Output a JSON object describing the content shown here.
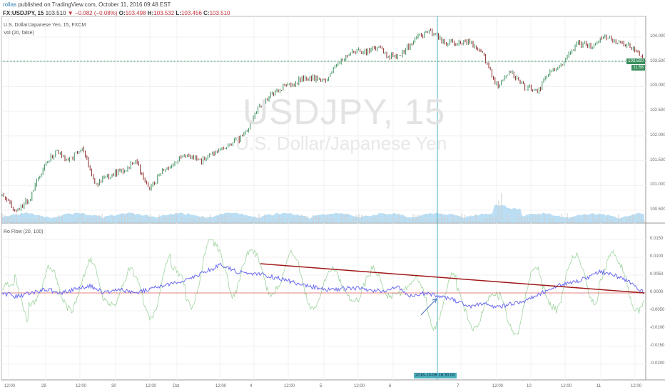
{
  "header": {
    "user": "rollas",
    "published": "published on TradingView.com, October 11, 2016 09:48 EST",
    "symbol": "FX:USDJPY, 15",
    "last": "103.510",
    "change": "−0.082 (−0.08%)",
    "o_label": "O:",
    "o": "103.498",
    "h_label": "H:",
    "h": "103.532",
    "l_label": "L:",
    "l": "103.456",
    "c_label": "C:",
    "c": "103.510"
  },
  "main_pane": {
    "title": "U.S. Dollar/Japanese Yen, 15, FXCM",
    "vol_label": "Vol (20, false)",
    "watermark_symbol": "USDJPY, 15",
    "watermark_name": "U.S. Dollar/Japanese Yen",
    "price_ticks": [
      "104.000",
      "103.500",
      "103.000",
      "102.500",
      "102.000",
      "101.500",
      "101.000",
      "100.500"
    ],
    "last_price_badge": "103.510",
    "countdown_badge": "11:58"
  },
  "indicator_pane": {
    "title": "Ro Flow (20, 100)",
    "ticks": [
      "0.0150",
      "0.0100",
      "0.0050",
      "0.0000",
      "-0.0050",
      "-0.0100",
      "-0.0150",
      "-0.0200"
    ]
  },
  "time_axis": {
    "labels": [
      "12:00",
      "29",
      "12:00",
      "30",
      "12:00",
      "Oct",
      "12:00",
      "4",
      "12:00",
      "5",
      "12:00",
      "6",
      "7",
      "12:00",
      "10",
      "12:00",
      "11",
      "12:00"
    ],
    "crosshair_label": "2016-10-06 16:30:00"
  },
  "colors": {
    "up": "#3a8f5d",
    "down": "#8b2a2a",
    "ro_flow": "#6b6bf0",
    "signal": "#9fd49f",
    "trendline": "#a01818",
    "zero": "#e06060",
    "volume": "#9fd0ee",
    "crosshair": "#4fb3bf"
  },
  "chart_data": {
    "type": "line",
    "price_path": [
      100.8,
      100.5,
      100.7,
      101.3,
      101.7,
      101.5,
      101.8,
      101.0,
      101.2,
      101.3,
      101.5,
      100.9,
      101.3,
      101.5,
      101.6,
      101.5,
      101.7,
      101.8,
      102.0,
      102.5,
      102.8,
      103.0,
      103.1,
      103.2,
      103.1,
      103.4,
      103.7,
      103.7,
      103.8,
      103.6,
      103.7,
      104.0,
      104.1,
      103.9,
      103.9,
      103.9,
      103.6,
      103.0,
      103.3,
      103.0,
      102.9,
      103.3,
      103.5,
      103.9,
      103.8,
      104.0,
      103.9,
      103.8,
      103.51
    ],
    "ro_flow": [
      0.0,
      -0.001,
      0.0,
      0.001,
      0.0,
      0.001,
      0.002,
      0.0,
      0.001,
      0.0,
      0.001,
      0.002,
      0.003,
      0.0045,
      0.006,
      0.008,
      0.006,
      0.0055,
      0.005,
      0.004,
      0.003,
      0.002,
      0.001,
      0.001,
      0.0015,
      0.001,
      0.0005,
      0.002,
      -0.001,
      0.0,
      -0.001,
      -0.002,
      -0.004,
      -0.003,
      -0.004,
      -0.003,
      -0.002,
      0.0,
      0.002,
      0.003,
      0.004,
      0.006,
      0.005,
      0.003,
      0.0
    ],
    "trendline": {
      "from": 0.0082,
      "to": 0.0
    },
    "price_range": [
      100.3,
      104.35
    ],
    "ro_range": [
      -0.023,
      0.019
    ]
  }
}
